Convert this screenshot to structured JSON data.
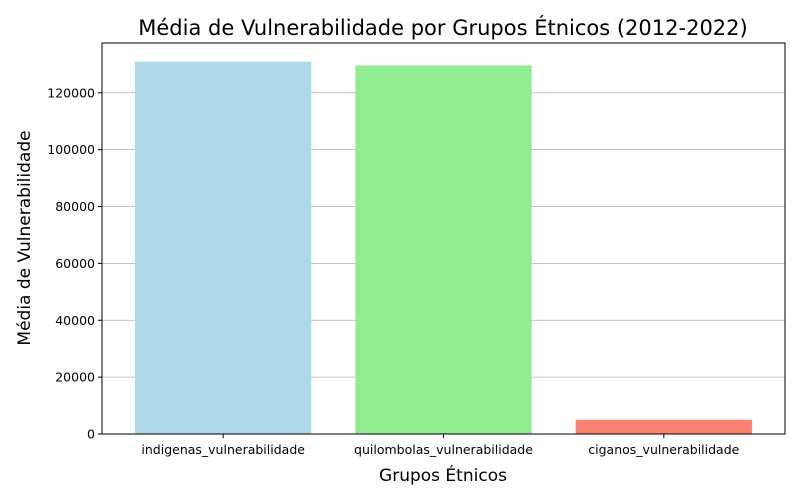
{
  "chart_data": {
    "type": "bar",
    "title": "Média de Vulnerabilidade por Grupos Étnicos (2012-2022)",
    "xlabel": "Grupos Étnicos",
    "ylabel": "Média de Vulnerabilidade",
    "categories": [
      "indigenas_vulnerabilidade",
      "quilombolas_vulnerabilidade",
      "ciganos_vulnerabilidade"
    ],
    "values": [
      130900,
      129600,
      5000
    ],
    "colors": [
      "#add8e6",
      "#90ee90",
      "#fa8072"
    ],
    "ylim": [
      0,
      137500
    ],
    "yticks": [
      0,
      20000,
      40000,
      60000,
      80000,
      100000,
      120000
    ],
    "grid": "y-major",
    "legend": "none"
  }
}
